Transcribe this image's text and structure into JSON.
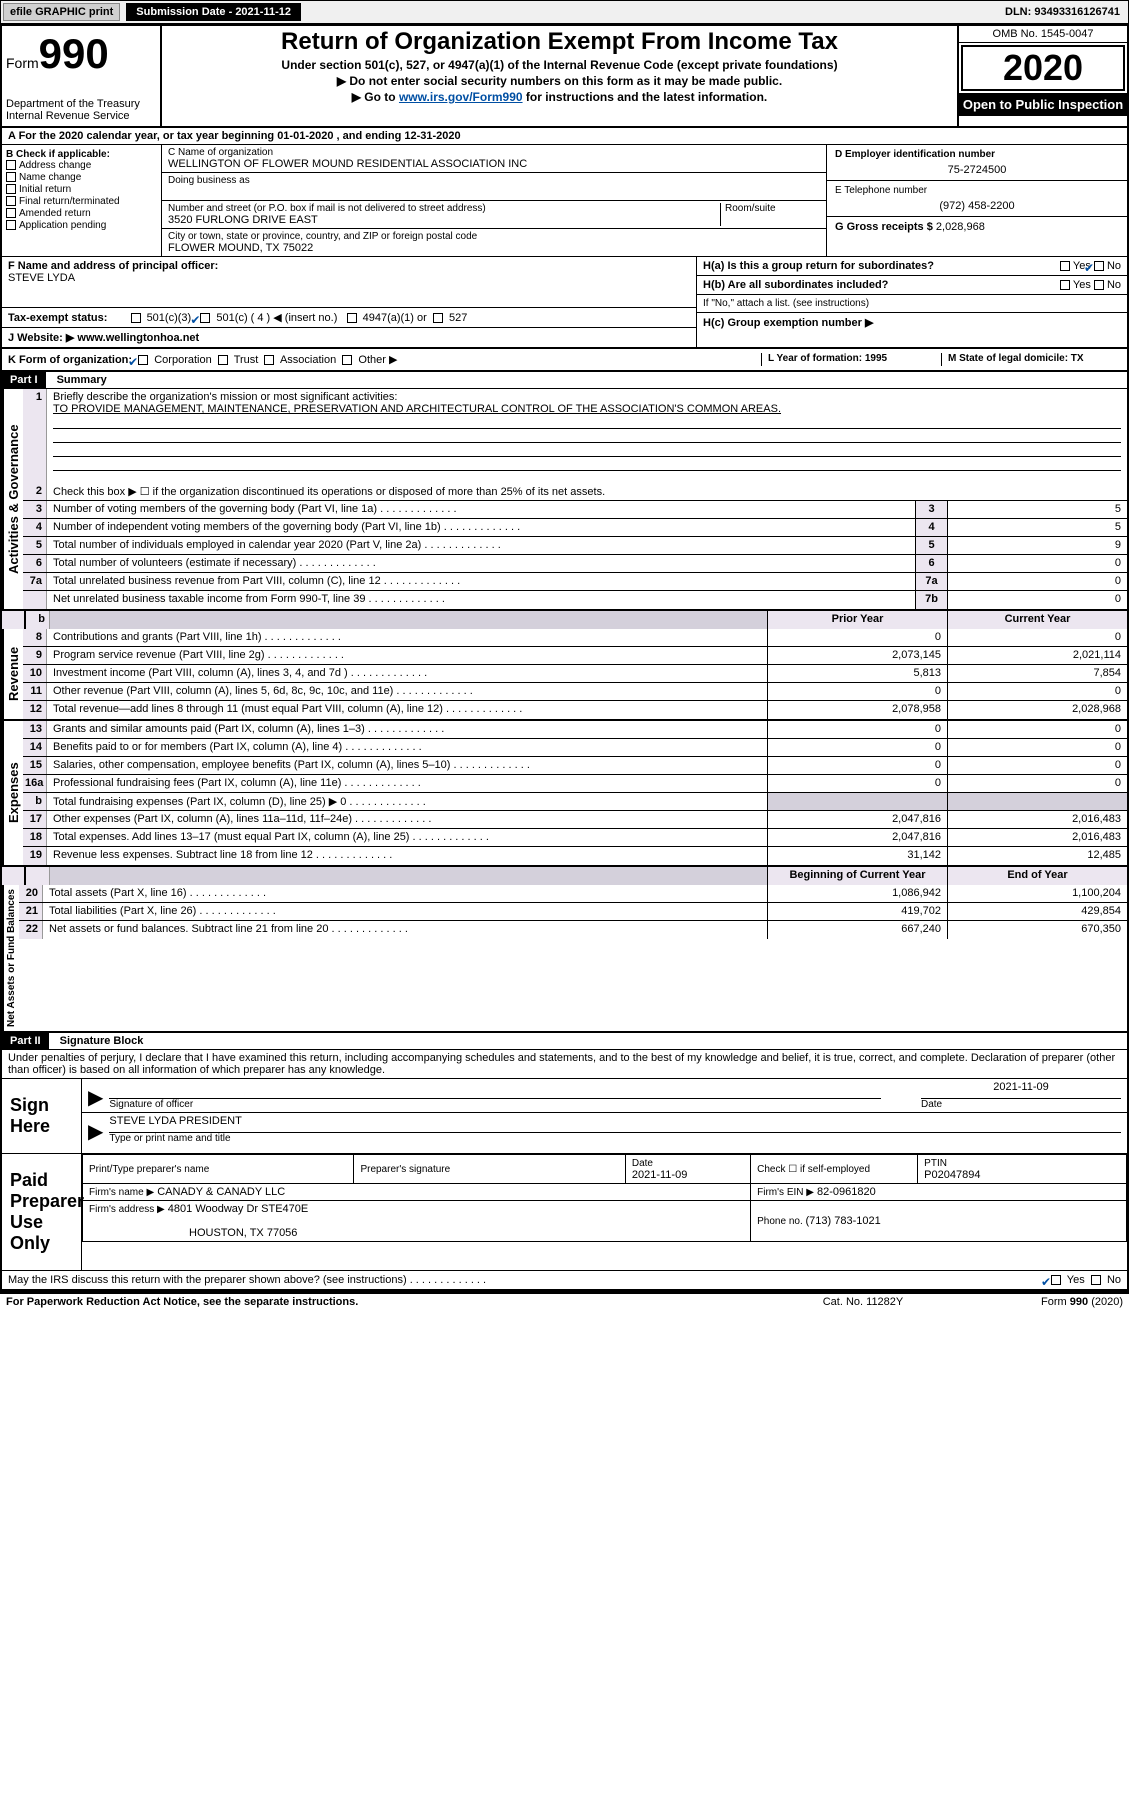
{
  "topbar": {
    "efile": "efile GRAPHIC print",
    "submission": "Submission Date - 2021-11-12",
    "dln": "DLN: 93493316126741"
  },
  "header": {
    "form_word": "Form",
    "form_num": "990",
    "dept1": "Department of the Treasury",
    "dept2": "Internal Revenue Service",
    "title": "Return of Organization Exempt From Income Tax",
    "sub": "Under section 501(c), 527, or 4947(a)(1) of the Internal Revenue Code (except private foundations)",
    "arrow1": "Do not enter social security numbers on this form as it may be made public.",
    "arrow2_pre": "Go to ",
    "arrow2_link": "www.irs.gov/Form990",
    "arrow2_post": " for instructions and the latest information.",
    "omb": "OMB No. 1545-0047",
    "year": "2020",
    "open": "Open to Public Inspection"
  },
  "row_a": "A   For the 2020 calendar year, or tax year beginning 01-01-2020     , and ending 12-31-2020",
  "col_b": {
    "head": "B Check if applicable:",
    "opts": [
      "Address change",
      "Name change",
      "Initial return",
      "Final return/terminated",
      "Amended return",
      "Application pending"
    ]
  },
  "col_c": {
    "c_label": "C Name of organization",
    "c_name": "WELLINGTON OF FLOWER MOUND RESIDENTIAL ASSOCIATION INC",
    "dba_label": "Doing business as",
    "addr_label": "Number and street (or P.O. box if mail is not delivered to street address)",
    "room": "Room/suite",
    "addr": "3520 FURLONG DRIVE EAST",
    "city_label": "City or town, state or province, country, and ZIP or foreign postal code",
    "city": "FLOWER MOUND, TX  75022"
  },
  "col_right": {
    "d_label": "D Employer identification number",
    "d_val": "75-2724500",
    "e_label": "E Telephone number",
    "e_val": "(972) 458-2200",
    "g_label": "G Gross receipts $ ",
    "g_val": "2,028,968"
  },
  "f_block": {
    "f_label": "F  Name and address of principal officer:",
    "f_name": "STEVE LYDA",
    "tax_exempt": "Tax-exempt status:",
    "te_501c3": "501(c)(3)",
    "te_501c": "501(c) ( 4 ) ◀ (insert no.)",
    "te_4947": "4947(a)(1) or",
    "te_527": "527",
    "j_label": "J   Website: ▶",
    "j_val": "  www.wellingtonhoa.net"
  },
  "h_block": {
    "ha": "H(a)  Is this a group return for subordinates?",
    "hb": "H(b)  Are all subordinates included?",
    "hb_note": "If \"No,\" attach a list. (see instructions)",
    "hc": "H(c)  Group exemption number ▶",
    "yes": "Yes",
    "no": "No"
  },
  "row_k": {
    "k": "K Form of organization:",
    "corp": "Corporation",
    "trust": "Trust",
    "assoc": "Association",
    "other": "Other ▶",
    "l": "L Year of formation: 1995",
    "m": "M State of legal domicile: TX"
  },
  "part1": {
    "header": "Part I",
    "title": "Summary",
    "line1": "Briefly describe the organization's mission or most significant activities:",
    "line1_text": "TO PROVIDE MANAGEMENT, MAINTENANCE, PRESERVATION AND ARCHITECTURAL CONTROL OF THE ASSOCIATION'S COMMON AREAS.",
    "line2": "Check this box ▶ ☐  if the organization discontinued its operations or disposed of more than 25% of its net assets.",
    "lines_num": [
      {
        "n": "3",
        "d": "Number of voting members of the governing body (Part VI, line 1a)",
        "box": "3",
        "v": "5"
      },
      {
        "n": "4",
        "d": "Number of independent voting members of the governing body (Part VI, line 1b)",
        "box": "4",
        "v": "5"
      },
      {
        "n": "5",
        "d": "Total number of individuals employed in calendar year 2020 (Part V, line 2a)",
        "box": "5",
        "v": "9"
      },
      {
        "n": "6",
        "d": "Total number of volunteers (estimate if necessary)",
        "box": "6",
        "v": "0"
      },
      {
        "n": "7a",
        "d": "Total unrelated business revenue from Part VIII, column (C), line 12",
        "box": "7a",
        "v": "0"
      },
      {
        "n": "",
        "d": "Net unrelated business taxable income from Form 990-T, line 39",
        "box": "7b",
        "v": "0"
      }
    ],
    "prior": "Prior Year",
    "current": "Current Year",
    "rev_lines": [
      {
        "n": "8",
        "d": "Contributions and grants (Part VIII, line 1h)",
        "p": "0",
        "c": "0"
      },
      {
        "n": "9",
        "d": "Program service revenue (Part VIII, line 2g)",
        "p": "2,073,145",
        "c": "2,021,114"
      },
      {
        "n": "10",
        "d": "Investment income (Part VIII, column (A), lines 3, 4, and 7d )",
        "p": "5,813",
        "c": "7,854"
      },
      {
        "n": "11",
        "d": "Other revenue (Part VIII, column (A), lines 5, 6d, 8c, 9c, 10c, and 11e)",
        "p": "0",
        "c": "0"
      },
      {
        "n": "12",
        "d": "Total revenue—add lines 8 through 11 (must equal Part VIII, column (A), line 12)",
        "p": "2,078,958",
        "c": "2,028,968"
      }
    ],
    "exp_lines": [
      {
        "n": "13",
        "d": "Grants and similar amounts paid (Part IX, column (A), lines 1–3)",
        "p": "0",
        "c": "0"
      },
      {
        "n": "14",
        "d": "Benefits paid to or for members (Part IX, column (A), line 4)",
        "p": "0",
        "c": "0"
      },
      {
        "n": "15",
        "d": "Salaries, other compensation, employee benefits (Part IX, column (A), lines 5–10)",
        "p": "0",
        "c": "0"
      },
      {
        "n": "16a",
        "d": "Professional fundraising fees (Part IX, column (A), line 11e)",
        "p": "0",
        "c": "0"
      },
      {
        "n": "b",
        "d": "Total fundraising expenses (Part IX, column (D), line 25) ▶ 0",
        "p": "",
        "c": "",
        "shade": true
      },
      {
        "n": "17",
        "d": "Other expenses (Part IX, column (A), lines 11a–11d, 11f–24e)",
        "p": "2,047,816",
        "c": "2,016,483"
      },
      {
        "n": "18",
        "d": "Total expenses. Add lines 13–17 (must equal Part IX, column (A), line 25)",
        "p": "2,047,816",
        "c": "2,016,483"
      },
      {
        "n": "19",
        "d": "Revenue less expenses. Subtract line 18 from line 12",
        "p": "31,142",
        "c": "12,485"
      }
    ],
    "beg": "Beginning of Current Year",
    "end": "End of Year",
    "na_lines": [
      {
        "n": "20",
        "d": "Total assets (Part X, line 16)",
        "p": "1,086,942",
        "c": "1,100,204"
      },
      {
        "n": "21",
        "d": "Total liabilities (Part X, line 26)",
        "p": "419,702",
        "c": "429,854"
      },
      {
        "n": "22",
        "d": "Net assets or fund balances. Subtract line 21 from line 20",
        "p": "667,240",
        "c": "670,350"
      }
    ]
  },
  "part2": {
    "header": "Part II",
    "title": "Signature Block",
    "penalty": "Under penalties of perjury, I declare that I have examined this return, including accompanying schedules and statements, and to the best of my knowledge and belief, it is true, correct, and complete. Declaration of preparer (other than officer) is based on all information of which preparer has any knowledge.",
    "sign_here": "Sign Here",
    "sig_officer": "Signature of officer",
    "sig_date": "2021-11-09",
    "date_lbl": "Date",
    "officer_name": "STEVE LYDA  PRESIDENT",
    "type_name": "Type or print name and title",
    "paid": "Paid Preparer Use Only",
    "prep_name_h": "Print/Type preparer's name",
    "prep_sig_h": "Preparer's signature",
    "date_h": "Date",
    "date_v": "2021-11-09",
    "check_self": "Check ☐ if self-employed",
    "ptin_h": "PTIN",
    "ptin_v": "P02047894",
    "firm_name_l": "Firm's name    ▶",
    "firm_name_v": "CANADY & CANADY LLC",
    "firm_ein_l": "Firm's EIN ▶",
    "firm_ein_v": "82-0961820",
    "firm_addr_l": "Firm's address ▶",
    "firm_addr_v1": "4801 Woodway Dr STE470E",
    "firm_addr_v2": "HOUSTON, TX  77056",
    "phone_l": "Phone no. ",
    "phone_v": "(713) 783-1021",
    "discuss": "May the IRS discuss this return with the preparer shown above? (see instructions)",
    "paperwork": "For Paperwork Reduction Act Notice, see the separate instructions.",
    "cat": "Cat. No. 11282Y",
    "form_foot": "Form 990 (2020)"
  },
  "side_labels": {
    "gov": "Activities & Governance",
    "rev": "Revenue",
    "exp": "Expenses",
    "na": "Net Assets or Fund Balances"
  }
}
